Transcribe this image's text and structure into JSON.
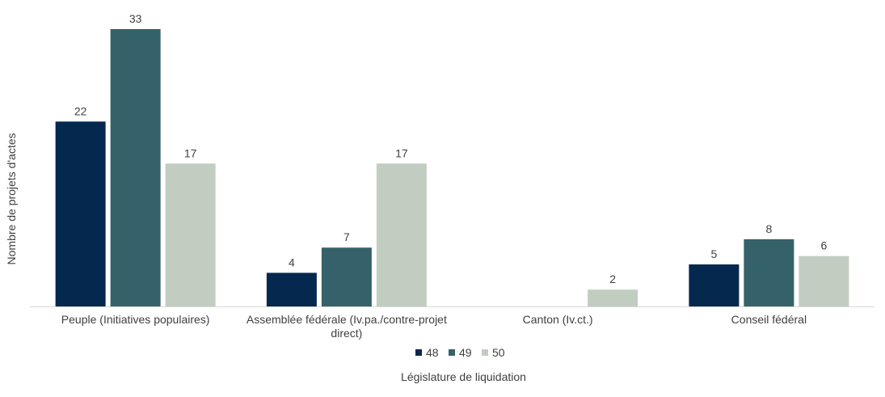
{
  "chart_data": {
    "type": "bar",
    "categories": [
      [
        "Peuple (Initiatives populaires)"
      ],
      [
        "Assemblée fédérale (Iv.pa./contre-projet",
        "direct)"
      ],
      [
        "Canton (Iv.ct.)"
      ],
      [
        "Conseil fédéral"
      ]
    ],
    "series": [
      {
        "name": "48",
        "color": "#05284f",
        "values": [
          22,
          4,
          null,
          5
        ]
      },
      {
        "name": "49",
        "color": "#35626a",
        "values": [
          33,
          7,
          null,
          8
        ]
      },
      {
        "name": "50",
        "color": "#c2cdc1",
        "values": [
          17,
          17,
          2,
          6
        ]
      }
    ],
    "xlabel": "Législature de liquidation",
    "ylabel": "Nombre de projets d'actes",
    "ylim": [
      0,
      33
    ],
    "grid": false,
    "legend_position": "bottom",
    "data_labels": true,
    "axis_color": "#d9d9d9",
    "text_color": "#404040"
  }
}
